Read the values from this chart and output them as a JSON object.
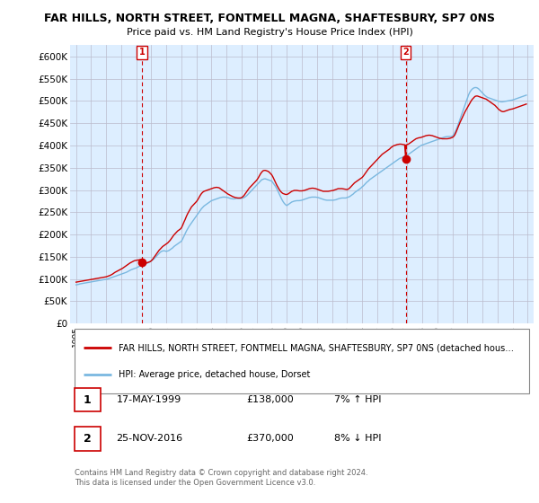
{
  "title": "FAR HILLS, NORTH STREET, FONTMELL MAGNA, SHAFTESBURY, SP7 0NS",
  "subtitle": "Price paid vs. HM Land Registry's House Price Index (HPI)",
  "ylabel_ticks": [
    "£0",
    "£50K",
    "£100K",
    "£150K",
    "£200K",
    "£250K",
    "£300K",
    "£350K",
    "£400K",
    "£450K",
    "£500K",
    "£550K",
    "£600K"
  ],
  "ytick_vals": [
    0,
    50000,
    100000,
    150000,
    200000,
    250000,
    300000,
    350000,
    400000,
    450000,
    500000,
    550000,
    600000
  ],
  "ylim": [
    0,
    625000
  ],
  "xlim_start": 1994.6,
  "xlim_end": 2025.4,
  "xtick_years": [
    1995,
    1996,
    1997,
    1998,
    1999,
    2000,
    2001,
    2002,
    2003,
    2004,
    2005,
    2006,
    2007,
    2008,
    2009,
    2010,
    2011,
    2012,
    2013,
    2014,
    2015,
    2016,
    2017,
    2018,
    2019,
    2020,
    2021,
    2022,
    2023,
    2024,
    2025
  ],
  "hpi_color": "#7ab8e0",
  "price_color": "#cc0000",
  "chart_bg": "#ddeeff",
  "marker1_x": 1999.38,
  "marker1_y": 138000,
  "marker2_x": 2016.9,
  "marker2_y": 370000,
  "vline1_x": 1999.38,
  "vline2_x": 2016.9,
  "legend_line1": "FAR HILLS, NORTH STREET, FONTMELL MAGNA, SHAFTESBURY, SP7 0NS (detached hous…",
  "legend_line2": "HPI: Average price, detached house, Dorset",
  "footer": "Contains HM Land Registry data © Crown copyright and database right 2024.\nThis data is licensed under the Open Government Licence v3.0.",
  "bg_color": "#ffffff",
  "grid_color": "#bbbbcc",
  "hpi_x": [
    1995.0,
    1995.083,
    1995.167,
    1995.25,
    1995.333,
    1995.417,
    1995.5,
    1995.583,
    1995.667,
    1995.75,
    1995.833,
    1995.917,
    1996.0,
    1996.083,
    1996.167,
    1996.25,
    1996.333,
    1996.417,
    1996.5,
    1996.583,
    1996.667,
    1996.75,
    1996.833,
    1996.917,
    1997.0,
    1997.083,
    1997.167,
    1997.25,
    1997.333,
    1997.417,
    1997.5,
    1997.583,
    1997.667,
    1997.75,
    1997.833,
    1997.917,
    1998.0,
    1998.083,
    1998.167,
    1998.25,
    1998.333,
    1998.417,
    1998.5,
    1998.583,
    1998.667,
    1998.75,
    1998.833,
    1998.917,
    1999.0,
    1999.083,
    1999.167,
    1999.25,
    1999.333,
    1999.417,
    1999.5,
    1999.583,
    1999.667,
    1999.75,
    1999.833,
    1999.917,
    2000.0,
    2000.083,
    2000.167,
    2000.25,
    2000.333,
    2000.417,
    2000.5,
    2000.583,
    2000.667,
    2000.75,
    2000.833,
    2000.917,
    2001.0,
    2001.083,
    2001.167,
    2001.25,
    2001.333,
    2001.417,
    2001.5,
    2001.583,
    2001.667,
    2001.75,
    2001.833,
    2001.917,
    2002.0,
    2002.083,
    2002.167,
    2002.25,
    2002.333,
    2002.417,
    2002.5,
    2002.583,
    2002.667,
    2002.75,
    2002.833,
    2002.917,
    2003.0,
    2003.083,
    2003.167,
    2003.25,
    2003.333,
    2003.417,
    2003.5,
    2003.583,
    2003.667,
    2003.75,
    2003.833,
    2003.917,
    2004.0,
    2004.083,
    2004.167,
    2004.25,
    2004.333,
    2004.417,
    2004.5,
    2004.583,
    2004.667,
    2004.75,
    2004.833,
    2004.917,
    2005.0,
    2005.083,
    2005.167,
    2005.25,
    2005.333,
    2005.417,
    2005.5,
    2005.583,
    2005.667,
    2005.75,
    2005.833,
    2005.917,
    2006.0,
    2006.083,
    2006.167,
    2006.25,
    2006.333,
    2006.417,
    2006.5,
    2006.583,
    2006.667,
    2006.75,
    2006.833,
    2006.917,
    2007.0,
    2007.083,
    2007.167,
    2007.25,
    2007.333,
    2007.417,
    2007.5,
    2007.583,
    2007.667,
    2007.75,
    2007.833,
    2007.917,
    2008.0,
    2008.083,
    2008.167,
    2008.25,
    2008.333,
    2008.417,
    2008.5,
    2008.583,
    2008.667,
    2008.75,
    2008.833,
    2008.917,
    2009.0,
    2009.083,
    2009.167,
    2009.25,
    2009.333,
    2009.417,
    2009.5,
    2009.583,
    2009.667,
    2009.75,
    2009.833,
    2009.917,
    2010.0,
    2010.083,
    2010.167,
    2010.25,
    2010.333,
    2010.417,
    2010.5,
    2010.583,
    2010.667,
    2010.75,
    2010.833,
    2010.917,
    2011.0,
    2011.083,
    2011.167,
    2011.25,
    2011.333,
    2011.417,
    2011.5,
    2011.583,
    2011.667,
    2011.75,
    2011.833,
    2011.917,
    2012.0,
    2012.083,
    2012.167,
    2012.25,
    2012.333,
    2012.417,
    2012.5,
    2012.583,
    2012.667,
    2012.75,
    2012.833,
    2012.917,
    2013.0,
    2013.083,
    2013.167,
    2013.25,
    2013.333,
    2013.417,
    2013.5,
    2013.583,
    2013.667,
    2013.75,
    2013.833,
    2013.917,
    2014.0,
    2014.083,
    2014.167,
    2014.25,
    2014.333,
    2014.417,
    2014.5,
    2014.583,
    2014.667,
    2014.75,
    2014.833,
    2014.917,
    2015.0,
    2015.083,
    2015.167,
    2015.25,
    2015.333,
    2015.417,
    2015.5,
    2015.583,
    2015.667,
    2015.75,
    2015.833,
    2015.917,
    2016.0,
    2016.083,
    2016.167,
    2016.25,
    2016.333,
    2016.417,
    2016.5,
    2016.583,
    2016.667,
    2016.75,
    2016.833,
    2016.917,
    2017.0,
    2017.083,
    2017.167,
    2017.25,
    2017.333,
    2017.417,
    2017.5,
    2017.583,
    2017.667,
    2017.75,
    2017.833,
    2017.917,
    2018.0,
    2018.083,
    2018.167,
    2018.25,
    2018.333,
    2018.417,
    2018.5,
    2018.583,
    2018.667,
    2018.75,
    2018.833,
    2018.917,
    2019.0,
    2019.083,
    2019.167,
    2019.25,
    2019.333,
    2019.417,
    2019.5,
    2019.583,
    2019.667,
    2019.75,
    2019.833,
    2019.917,
    2020.0,
    2020.083,
    2020.167,
    2020.25,
    2020.333,
    2020.417,
    2020.5,
    2020.583,
    2020.667,
    2020.75,
    2020.833,
    2020.917,
    2021.0,
    2021.083,
    2021.167,
    2021.25,
    2021.333,
    2021.417,
    2021.5,
    2021.583,
    2021.667,
    2021.75,
    2021.833,
    2021.917,
    2022.0,
    2022.083,
    2022.167,
    2022.25,
    2022.333,
    2022.417,
    2022.5,
    2022.583,
    2022.667,
    2022.75,
    2022.833,
    2022.917,
    2023.0,
    2023.083,
    2023.167,
    2023.25,
    2023.333,
    2023.417,
    2023.5,
    2023.583,
    2023.667,
    2023.75,
    2023.833,
    2023.917,
    2024.0,
    2024.083,
    2024.167,
    2024.25,
    2024.333,
    2024.417,
    2024.5,
    2024.583,
    2024.667,
    2024.75,
    2024.833,
    2024.917
  ],
  "hpi_y": [
    87000,
    87500,
    88000,
    89000,
    89500,
    90000,
    90500,
    91000,
    91500,
    92000,
    92500,
    93000,
    93500,
    94000,
    94500,
    95000,
    95500,
    96000,
    96500,
    97000,
    97500,
    98000,
    98500,
    99000,
    99500,
    100000,
    101000,
    102000,
    103000,
    104000,
    105000,
    106000,
    107000,
    108000,
    109000,
    110000,
    111000,
    112000,
    113000,
    114000,
    115000,
    116500,
    118000,
    119500,
    121000,
    122000,
    123000,
    124000,
    125000,
    126500,
    128000,
    129500,
    131000,
    132000,
    133000,
    134000,
    135000,
    136000,
    137500,
    139000,
    141000,
    143000,
    145000,
    148000,
    151000,
    154000,
    157000,
    160000,
    162000,
    163000,
    163500,
    163000,
    162000,
    163000,
    164000,
    166000,
    168000,
    170000,
    173000,
    175000,
    177000,
    179000,
    181000,
    183000,
    185000,
    190000,
    196000,
    202000,
    208000,
    213000,
    218000,
    222000,
    226000,
    230000,
    234000,
    238000,
    242000,
    246000,
    250000,
    254000,
    258000,
    261000,
    264000,
    266000,
    268000,
    270000,
    272000,
    274000,
    276000,
    277000,
    278000,
    279000,
    280000,
    281000,
    282000,
    283000,
    283500,
    284000,
    284000,
    284000,
    283500,
    283000,
    282000,
    281000,
    280500,
    280000,
    280000,
    280500,
    281000,
    281000,
    281000,
    281000,
    281500,
    282000,
    283000,
    285000,
    287000,
    290000,
    293000,
    296000,
    299000,
    302000,
    305000,
    308000,
    311000,
    314000,
    317000,
    320000,
    323000,
    324000,
    325000,
    325000,
    324000,
    323000,
    322000,
    321000,
    320000,
    316000,
    312000,
    308000,
    303000,
    297000,
    291000,
    285000,
    279000,
    274000,
    270000,
    267000,
    265000,
    267000,
    269000,
    271000,
    273000,
    274000,
    275000,
    275500,
    276000,
    276000,
    276000,
    276500,
    277000,
    278000,
    279000,
    280000,
    281000,
    282000,
    283000,
    283500,
    284000,
    284000,
    284000,
    284000,
    283500,
    283000,
    282000,
    281000,
    280000,
    279000,
    278000,
    277500,
    277000,
    277000,
    277000,
    277000,
    277000,
    277000,
    277500,
    278000,
    279000,
    280000,
    281000,
    281500,
    282000,
    282000,
    282000,
    282000,
    283000,
    284000,
    285000,
    287000,
    289000,
    291000,
    294000,
    296000,
    298000,
    300000,
    302000,
    304000,
    307000,
    309000,
    312000,
    315000,
    318000,
    320000,
    323000,
    325000,
    327000,
    329000,
    331000,
    333000,
    335000,
    337000,
    339000,
    341000,
    343000,
    345000,
    347000,
    349000,
    351000,
    353000,
    355000,
    357000,
    359000,
    361000,
    363000,
    365000,
    367000,
    369000,
    371000,
    372000,
    373000,
    374000,
    375000,
    376000,
    378000,
    380000,
    382000,
    384000,
    386000,
    388000,
    390000,
    392000,
    394000,
    396000,
    398000,
    400000,
    401000,
    402000,
    403000,
    404000,
    405000,
    406000,
    407000,
    408000,
    409000,
    410000,
    411000,
    412000,
    413000,
    414000,
    415000,
    416000,
    417000,
    418000,
    419000,
    419500,
    420000,
    420000,
    420000,
    420000,
    421000,
    424000,
    429000,
    435000,
    442000,
    450000,
    458000,
    466000,
    474000,
    482000,
    490000,
    498000,
    506000,
    514000,
    520000,
    524000,
    527000,
    529000,
    530000,
    530000,
    529000,
    527000,
    524000,
    521000,
    518000,
    515000,
    512000,
    510000,
    508000,
    507000,
    506000,
    505000,
    504000,
    503000,
    502000,
    501000,
    500000,
    499000,
    498500,
    498000,
    498000,
    498500,
    499000,
    499500,
    500000,
    500500,
    501000,
    501500,
    502000,
    503000,
    504000,
    505000,
    506000,
    507000,
    508000,
    509000,
    510000,
    511000,
    512000,
    513000
  ],
  "price_x": [
    1995.0,
    1995.083,
    1995.167,
    1995.25,
    1995.333,
    1995.417,
    1995.5,
    1995.583,
    1995.667,
    1995.75,
    1995.833,
    1995.917,
    1996.0,
    1996.083,
    1996.167,
    1996.25,
    1996.333,
    1996.417,
    1996.5,
    1996.583,
    1996.667,
    1996.75,
    1996.833,
    1996.917,
    1997.0,
    1997.083,
    1997.167,
    1997.25,
    1997.333,
    1997.417,
    1997.5,
    1997.583,
    1997.667,
    1997.75,
    1997.833,
    1997.917,
    1998.0,
    1998.083,
    1998.167,
    1998.25,
    1998.333,
    1998.417,
    1998.5,
    1998.583,
    1998.667,
    1998.75,
    1998.833,
    1998.917,
    1999.0,
    1999.083,
    1999.167,
    1999.25,
    1999.333,
    1999.38,
    1999.417,
    1999.5,
    1999.583,
    1999.667,
    1999.75,
    1999.833,
    1999.917,
    2000.0,
    2000.083,
    2000.167,
    2000.25,
    2000.333,
    2000.417,
    2000.5,
    2000.583,
    2000.667,
    2000.75,
    2000.833,
    2000.917,
    2001.0,
    2001.083,
    2001.167,
    2001.25,
    2001.333,
    2001.417,
    2001.5,
    2001.583,
    2001.667,
    2001.75,
    2001.833,
    2001.917,
    2002.0,
    2002.083,
    2002.167,
    2002.25,
    2002.333,
    2002.417,
    2002.5,
    2002.583,
    2002.667,
    2002.75,
    2002.833,
    2002.917,
    2003.0,
    2003.083,
    2003.167,
    2003.25,
    2003.333,
    2003.417,
    2003.5,
    2003.583,
    2003.667,
    2003.75,
    2003.833,
    2003.917,
    2004.0,
    2004.083,
    2004.167,
    2004.25,
    2004.333,
    2004.417,
    2004.5,
    2004.583,
    2004.667,
    2004.75,
    2004.833,
    2004.917,
    2005.0,
    2005.083,
    2005.167,
    2005.25,
    2005.333,
    2005.417,
    2005.5,
    2005.583,
    2005.667,
    2005.75,
    2005.833,
    2005.917,
    2006.0,
    2006.083,
    2006.167,
    2006.25,
    2006.333,
    2006.417,
    2006.5,
    2006.583,
    2006.667,
    2006.75,
    2006.833,
    2006.917,
    2007.0,
    2007.083,
    2007.167,
    2007.25,
    2007.333,
    2007.417,
    2007.5,
    2007.583,
    2007.667,
    2007.75,
    2007.833,
    2007.917,
    2008.0,
    2008.083,
    2008.167,
    2008.25,
    2008.333,
    2008.417,
    2008.5,
    2008.583,
    2008.667,
    2008.75,
    2008.833,
    2008.917,
    2009.0,
    2009.083,
    2009.167,
    2009.25,
    2009.333,
    2009.417,
    2009.5,
    2009.583,
    2009.667,
    2009.75,
    2009.833,
    2009.917,
    2010.0,
    2010.083,
    2010.167,
    2010.25,
    2010.333,
    2010.417,
    2010.5,
    2010.583,
    2010.667,
    2010.75,
    2010.833,
    2010.917,
    2011.0,
    2011.083,
    2011.167,
    2011.25,
    2011.333,
    2011.417,
    2011.5,
    2011.583,
    2011.667,
    2011.75,
    2011.833,
    2011.917,
    2012.0,
    2012.083,
    2012.167,
    2012.25,
    2012.333,
    2012.417,
    2012.5,
    2012.583,
    2012.667,
    2012.75,
    2012.833,
    2012.917,
    2013.0,
    2013.083,
    2013.167,
    2013.25,
    2013.333,
    2013.417,
    2013.5,
    2013.583,
    2013.667,
    2013.75,
    2013.833,
    2013.917,
    2014.0,
    2014.083,
    2014.167,
    2014.25,
    2014.333,
    2014.417,
    2014.5,
    2014.583,
    2014.667,
    2014.75,
    2014.833,
    2014.917,
    2015.0,
    2015.083,
    2015.167,
    2015.25,
    2015.333,
    2015.417,
    2015.5,
    2015.583,
    2015.667,
    2015.75,
    2015.833,
    2015.917,
    2016.0,
    2016.083,
    2016.167,
    2016.25,
    2016.333,
    2016.417,
    2016.5,
    2016.583,
    2016.667,
    2016.75,
    2016.833,
    2016.9,
    2016.917,
    2017.0,
    2017.083,
    2017.167,
    2017.25,
    2017.333,
    2017.417,
    2017.5,
    2017.583,
    2017.667,
    2017.75,
    2017.833,
    2017.917,
    2018.0,
    2018.083,
    2018.167,
    2018.25,
    2018.333,
    2018.417,
    2018.5,
    2018.583,
    2018.667,
    2018.75,
    2018.833,
    2018.917,
    2019.0,
    2019.083,
    2019.167,
    2019.25,
    2019.333,
    2019.417,
    2019.5,
    2019.583,
    2019.667,
    2019.75,
    2019.833,
    2019.917,
    2020.0,
    2020.083,
    2020.167,
    2020.25,
    2020.333,
    2020.417,
    2020.5,
    2020.583,
    2020.667,
    2020.75,
    2020.833,
    2020.917,
    2021.0,
    2021.083,
    2021.167,
    2021.25,
    2021.333,
    2021.417,
    2021.5,
    2021.583,
    2021.667,
    2021.75,
    2021.833,
    2021.917,
    2022.0,
    2022.083,
    2022.167,
    2022.25,
    2022.333,
    2022.417,
    2022.5,
    2022.583,
    2022.667,
    2022.75,
    2022.833,
    2022.917,
    2023.0,
    2023.083,
    2023.167,
    2023.25,
    2023.333,
    2023.417,
    2023.5,
    2023.583,
    2023.667,
    2023.75,
    2023.833,
    2023.917,
    2024.0,
    2024.083,
    2024.167,
    2024.25,
    2024.333,
    2024.417,
    2024.5,
    2024.583,
    2024.667,
    2024.75,
    2024.833,
    2024.917
  ],
  "price_y": [
    93000,
    93500,
    94000,
    94500,
    95000,
    95500,
    96000,
    96500,
    97000,
    97500,
    98000,
    98500,
    99000,
    99500,
    100000,
    100500,
    101000,
    101500,
    102000,
    102500,
    103000,
    103500,
    104000,
    104500,
    105000,
    106000,
    107000,
    108000,
    109500,
    111000,
    113000,
    115000,
    116500,
    118000,
    119500,
    121000,
    122500,
    124000,
    126000,
    128000,
    130000,
    132000,
    134000,
    136000,
    137500,
    139000,
    140500,
    141500,
    142000,
    142500,
    143000,
    143500,
    140000,
    138000,
    137000,
    136000,
    135500,
    136000,
    137000,
    138000,
    139000,
    141000,
    144000,
    148000,
    152000,
    156000,
    160000,
    164000,
    167000,
    170000,
    173000,
    175000,
    177000,
    179000,
    181000,
    184000,
    187000,
    191000,
    195000,
    199000,
    202000,
    205000,
    208000,
    210000,
    212000,
    215000,
    221000,
    228000,
    234000,
    241000,
    247000,
    252000,
    257000,
    262000,
    265000,
    268000,
    271000,
    274000,
    278000,
    283000,
    288000,
    292000,
    295000,
    297000,
    298000,
    299000,
    300000,
    301000,
    302000,
    303000,
    304000,
    305000,
    305500,
    306000,
    305500,
    305000,
    303000,
    301000,
    299000,
    297000,
    295000,
    293000,
    291000,
    289500,
    288000,
    286500,
    285000,
    284000,
    283000,
    282500,
    282000,
    282000,
    282000,
    283000,
    285000,
    288000,
    292000,
    296000,
    300000,
    304000,
    307000,
    310000,
    313000,
    316000,
    319000,
    322000,
    326000,
    331000,
    336000,
    340000,
    343000,
    344000,
    344000,
    343000,
    342000,
    340000,
    337000,
    334000,
    329000,
    323000,
    317000,
    311000,
    306000,
    301000,
    297000,
    294000,
    292000,
    291000,
    290000,
    290000,
    291000,
    293000,
    295000,
    297000,
    298000,
    299000,
    299000,
    299000,
    298500,
    298000,
    298000,
    298000,
    298500,
    299000,
    300000,
    301000,
    302000,
    303000,
    303500,
    304000,
    304000,
    303500,
    303000,
    302000,
    301000,
    300000,
    299000,
    298000,
    297000,
    297000,
    297000,
    297000,
    297000,
    297500,
    298000,
    298500,
    299000,
    300000,
    301000,
    302000,
    303000,
    303000,
    303000,
    303000,
    302500,
    302000,
    301500,
    301000,
    302000,
    304000,
    307000,
    310000,
    313000,
    316000,
    318000,
    320000,
    322000,
    324000,
    326000,
    328000,
    331000,
    335000,
    339000,
    343000,
    347000,
    350000,
    353000,
    356000,
    359000,
    362000,
    365000,
    368000,
    371000,
    374000,
    377000,
    380000,
    382000,
    384000,
    386000,
    388000,
    390000,
    392000,
    395000,
    397000,
    399000,
    400000,
    401000,
    402000,
    402500,
    403000,
    403000,
    402500,
    402000,
    401500,
    370000,
    401000,
    402000,
    403000,
    405000,
    407000,
    409000,
    411000,
    413000,
    415000,
    416000,
    417000,
    417500,
    418000,
    419000,
    420000,
    421000,
    422000,
    422500,
    423000,
    423000,
    422500,
    422000,
    421000,
    420000,
    419000,
    418000,
    417000,
    416000,
    415500,
    415000,
    415000,
    415000,
    415000,
    415000,
    415500,
    416000,
    417000,
    418000,
    420000,
    424000,
    430000,
    437000,
    444000,
    451000,
    457000,
    463000,
    469000,
    475000,
    480000,
    485000,
    490000,
    495000,
    500000,
    504000,
    507000,
    510000,
    511000,
    511000,
    510000,
    509000,
    508000,
    507000,
    506000,
    505000,
    504000,
    502000,
    500000,
    498000,
    496000,
    494000,
    492000,
    490000,
    487000,
    484000,
    481000,
    479000,
    477000,
    476000,
    476000,
    477000,
    478000,
    479000,
    480000,
    481000,
    481500,
    482000,
    483000,
    484000,
    485000,
    486000,
    487000,
    488000,
    489000,
    490000,
    491000,
    492000,
    493000
  ]
}
